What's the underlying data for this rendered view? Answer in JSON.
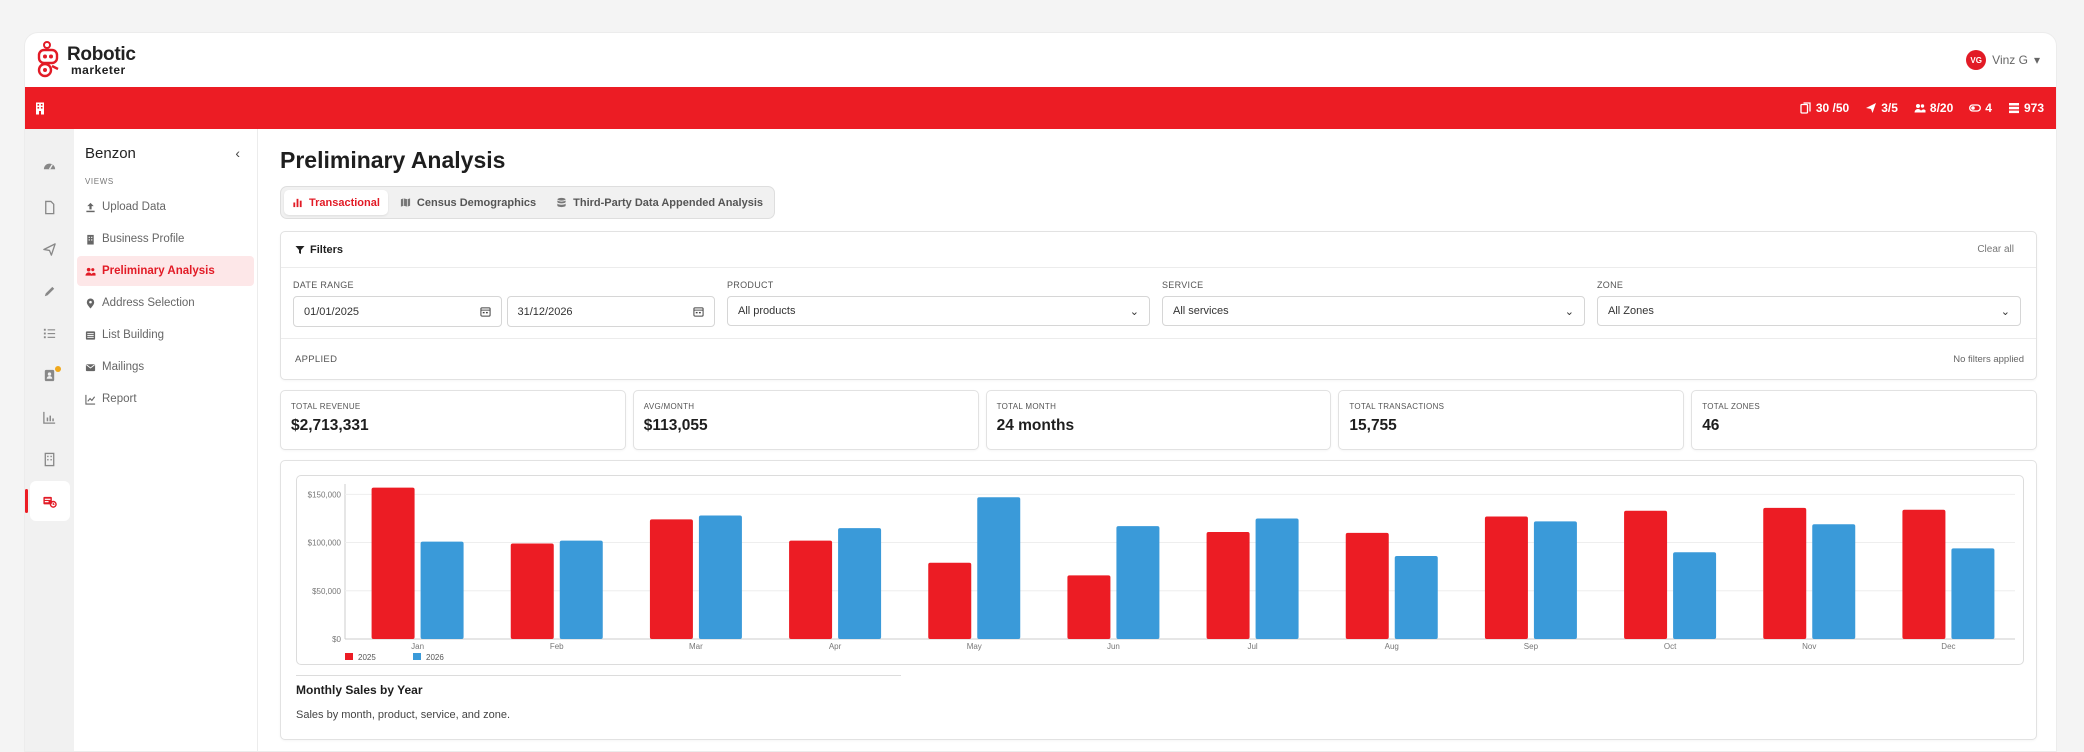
{
  "app": {
    "logo_line1": "Robotic",
    "logo_line2": "marketer"
  },
  "user": {
    "initials": "VG",
    "name": "Vinz G"
  },
  "top_stats": [
    {
      "icon": "documents-icon",
      "value": "30 /50"
    },
    {
      "icon": "send-icon",
      "value": "3/5"
    },
    {
      "icon": "users-icon",
      "value": "8/20"
    },
    {
      "icon": "toggle-icon",
      "value": "4"
    },
    {
      "icon": "stack-icon",
      "value": "973"
    }
  ],
  "rail": [
    "dashboard-icon",
    "document-icon",
    "send-icon",
    "pencil-icon",
    "list-icon",
    "contact-card-icon",
    "chart-icon",
    "building-icon",
    "analysis-icon"
  ],
  "sidebar": {
    "title": "Benzon",
    "section": "VIEWS",
    "items": [
      {
        "label": "Upload Data",
        "icon": "upload-icon"
      },
      {
        "label": "Business Profile",
        "icon": "building-icon"
      },
      {
        "label": "Preliminary Analysis",
        "icon": "users-icon",
        "active": true
      },
      {
        "label": "Address Selection",
        "icon": "map-pin-icon"
      },
      {
        "label": "List Building",
        "icon": "list-box-icon"
      },
      {
        "label": "Mailings",
        "icon": "envelope-icon"
      },
      {
        "label": "Report",
        "icon": "line-chart-icon"
      }
    ]
  },
  "page": {
    "title": "Preliminary Analysis"
  },
  "tabs": [
    {
      "label": "Transactional",
      "active": true
    },
    {
      "label": "Census Demographics"
    },
    {
      "label": "Third-Party Data Appended Analysis"
    }
  ],
  "filters": {
    "title": "Filters",
    "clear": "Clear all",
    "date_label": "DATE RANGE",
    "date_from": "01/01/2025",
    "date_to": "31/12/2026",
    "product_label": "PRODUCT",
    "product_value": "All products",
    "service_label": "SERVICE",
    "service_value": "All services",
    "zone_label": "ZONE",
    "zone_value": "All Zones",
    "applied_label": "APPLIED",
    "applied_value": "No filters applied"
  },
  "kpis": [
    {
      "label": "TOTAL REVENUE",
      "value": "$2,713,331"
    },
    {
      "label": "AVG/MONTH",
      "value": "$113,055"
    },
    {
      "label": "TOTAL MONTH",
      "value": "24 months"
    },
    {
      "label": "TOTAL TRANSACTIONS",
      "value": "15,755"
    },
    {
      "label": "TOTAL ZONES",
      "value": "46"
    }
  ],
  "chart": {
    "title": "Monthly Sales by Year",
    "subtitle": "Sales by month, product, service, and zone."
  },
  "chart_data": {
    "type": "bar",
    "categories": [
      "Jan",
      "Feb",
      "Mar",
      "Apr",
      "May",
      "Jun",
      "Jul",
      "Aug",
      "Sep",
      "Oct",
      "Nov",
      "Dec"
    ],
    "series": [
      {
        "name": "2025",
        "color": "#ec1c24",
        "values": [
          157000,
          99000,
          124000,
          102000,
          79000,
          66000,
          111000,
          110000,
          127000,
          133000,
          136000,
          134000
        ]
      },
      {
        "name": "2026",
        "color": "#3a9ad9",
        "values": [
          101000,
          102000,
          128000,
          115000,
          147000,
          117000,
          125000,
          86000,
          122000,
          90000,
          119000,
          94000
        ]
      }
    ],
    "ylim": [
      0,
      150000
    ],
    "yticks": [
      "$0",
      "$50,000",
      "$100,000",
      "$150,000"
    ],
    "ytick_values": [
      0,
      50000,
      100000,
      150000
    ],
    "grid": true,
    "legend": "bottom-left"
  }
}
